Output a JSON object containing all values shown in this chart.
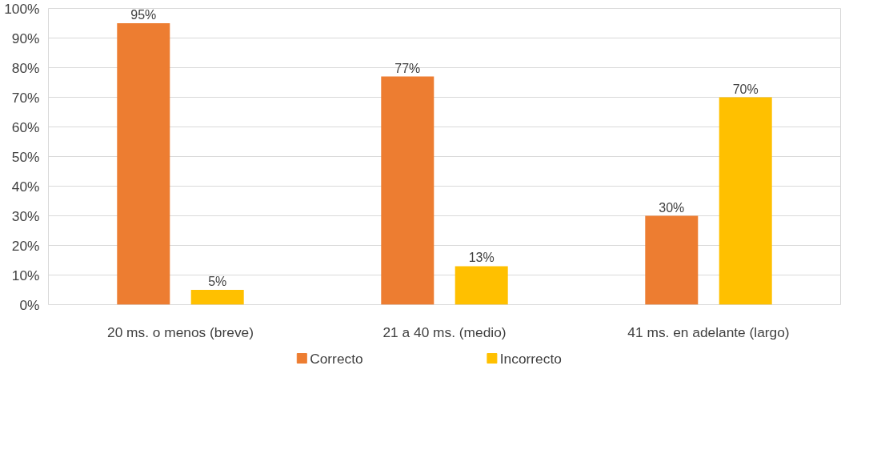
{
  "chart_data": {
    "type": "bar",
    "categories": [
      "20 ms. o menos (breve)",
      "21 a 40 ms. (medio)",
      "41 ms. en adelante (largo)"
    ],
    "series": [
      {
        "name": "Correcto",
        "color": "#ed7d31",
        "values": [
          95,
          77,
          30
        ],
        "value_labels": [
          "95%",
          "77%",
          "30%"
        ]
      },
      {
        "name": "Incorrecto",
        "color": "#ffc000",
        "values": [
          5,
          13,
          70
        ],
        "value_labels": [
          "5%",
          "13%",
          "70%"
        ]
      }
    ],
    "ylim": [
      0,
      100
    ],
    "yticks": [
      {
        "value": 0,
        "label": "0%"
      },
      {
        "value": 10,
        "label": "10%"
      },
      {
        "value": 20,
        "label": "20%"
      },
      {
        "value": 30,
        "label": "30%"
      },
      {
        "value": 40,
        "label": "40%"
      },
      {
        "value": 50,
        "label": "50%"
      },
      {
        "value": 60,
        "label": "60%"
      },
      {
        "value": 70,
        "label": "70%"
      },
      {
        "value": 80,
        "label": "80%"
      },
      {
        "value": 90,
        "label": "90%"
      },
      {
        "value": 100,
        "label": "100%"
      }
    ],
    "grid": "y",
    "legend": "bottom"
  }
}
